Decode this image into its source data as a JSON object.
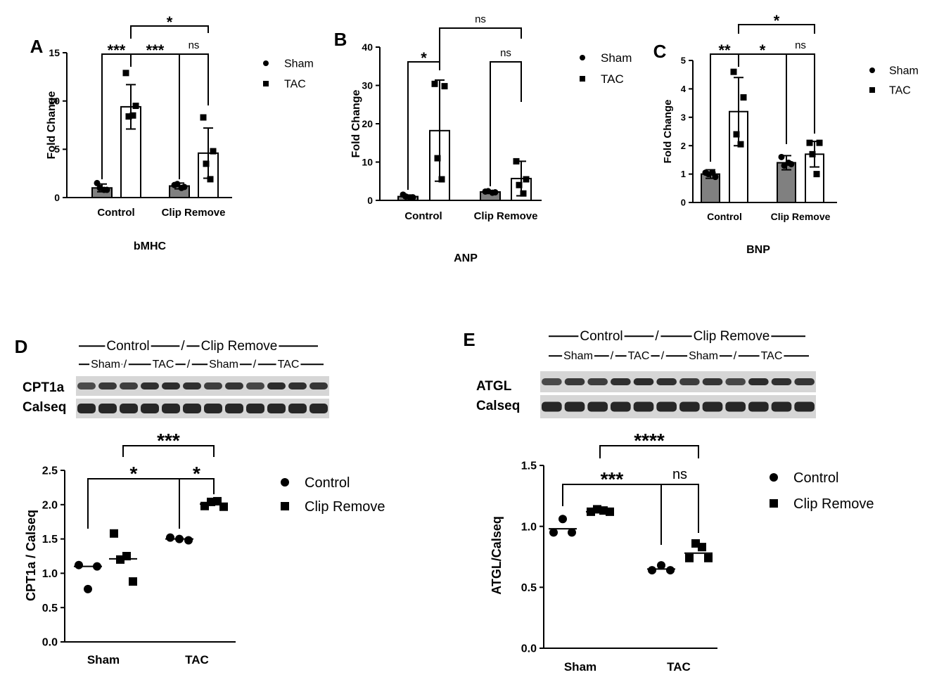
{
  "chart_data": [
    {
      "type": "bar",
      "panel": "A",
      "y_label": "Fold Change",
      "x_label": "bMHC",
      "categories": [
        "Control",
        "Clip Remove"
      ],
      "ylim": [
        0,
        15
      ],
      "yticks": [
        0,
        5,
        10,
        15
      ],
      "series": [
        {
          "name": "Sham",
          "color": "#808080",
          "marker": "circle",
          "values": [
            1.0,
            1.2
          ],
          "errors": [
            0.4,
            0.3
          ],
          "points": [
            [
              1.5,
              0.8,
              1.0,
              0.8
            ],
            [
              1.3,
              1.1,
              1.4,
              1.0
            ]
          ]
        },
        {
          "name": "TAC",
          "color": "#ffffff",
          "marker": "square",
          "values": [
            9.4,
            4.6
          ],
          "errors": [
            2.3,
            2.6
          ],
          "points": [
            [
              12.9,
              9.5,
              8.4,
              8.5
            ],
            [
              8.3,
              4.8,
              3.5,
              1.9
            ]
          ]
        }
      ],
      "comparisons": [
        "***",
        "***",
        "ns",
        "*"
      ]
    },
    {
      "type": "bar",
      "panel": "B",
      "y_label": "Fold Change",
      "x_label": "ANP",
      "categories": [
        "Control",
        "Clip Remove"
      ],
      "ylim": [
        0,
        40
      ],
      "yticks": [
        0,
        10,
        20,
        30,
        40
      ],
      "series": [
        {
          "name": "Sham",
          "color": "#808080",
          "marker": "circle",
          "values": [
            1.0,
            2.2
          ],
          "errors": [
            0.4,
            0.3
          ],
          "points": [
            [
              1.5,
              0.8,
              1.0,
              0.7
            ],
            [
              2.3,
              2.1,
              2.4,
              2.0
            ]
          ]
        },
        {
          "name": "TAC",
          "color": "#ffffff",
          "marker": "square",
          "values": [
            18.2,
            5.7
          ],
          "errors": [
            13.2,
            4.5
          ],
          "points": [
            [
              30.4,
              29.8,
              11.0,
              5.5
            ],
            [
              10.2,
              5.5,
              4.0,
              1.8
            ]
          ]
        }
      ],
      "comparisons": [
        "*",
        "ns",
        "ns"
      ]
    },
    {
      "type": "bar",
      "panel": "C",
      "y_label": "Fold Change",
      "x_label": "BNP",
      "categories": [
        "Control",
        "Clip Remove"
      ],
      "ylim": [
        0,
        5
      ],
      "yticks": [
        0,
        1,
        2,
        3,
        4,
        5
      ],
      "series": [
        {
          "name": "Sham",
          "color": "#808080",
          "marker": "circle",
          "values": [
            1.0,
            1.4
          ],
          "errors": [
            0.15,
            0.25
          ],
          "points": [
            [
              1.05,
              0.9,
              1.0,
              1.05
            ],
            [
              1.6,
              1.35,
              1.3,
              1.4
            ]
          ]
        },
        {
          "name": "TAC",
          "color": "#ffffff",
          "marker": "square",
          "values": [
            3.2,
            1.7
          ],
          "errors": [
            1.2,
            0.45
          ],
          "points": [
            [
              4.6,
              3.7,
              2.4,
              2.05
            ],
            [
              2.1,
              2.1,
              1.7,
              1.0
            ]
          ]
        }
      ],
      "comparisons": [
        "**",
        "*",
        "ns",
        "*"
      ]
    },
    {
      "type": "dot",
      "panel": "D",
      "y_label": "CPT1a / Calseq",
      "blot": {
        "header": [
          "Control",
          "/",
          "Clip Remove"
        ],
        "subheader": [
          "Sham",
          "/",
          "TAC",
          "/",
          "Sham",
          "/",
          "TAC"
        ],
        "rows": [
          "CPT1a",
          "Calseq"
        ]
      },
      "categories": [
        "Sham",
        "TAC"
      ],
      "ylim": [
        0,
        2.5
      ],
      "yticks": [
        {
          "value": 0,
          "label": "0.0"
        },
        0.5,
        {
          "value": 1,
          "label": "1.0"
        },
        1.5,
        {
          "value": 2,
          "label": "2.0"
        },
        2.5
      ],
      "series": [
        {
          "name": "Control",
          "color": "#000000",
          "marker": "circle",
          "values": [
            1.1,
            1.5
          ],
          "points": [
            [
              1.12,
              0.77,
              1.1
            ],
            [
              1.52,
              1.5,
              1.48
            ]
          ]
        },
        {
          "name": "Clip Remove",
          "color": "#000000",
          "marker": "square",
          "values": [
            1.21,
            2.01
          ],
          "points": [
            [
              1.58,
              1.2,
              1.25,
              0.88
            ],
            [
              1.98,
              2.04,
              2.05,
              1.97
            ]
          ]
        }
      ],
      "comparisons": [
        "*",
        "*",
        "***"
      ]
    },
    {
      "type": "dot",
      "panel": "E",
      "y_label": "ATGL/Calseq",
      "blot": {
        "header": [
          "Control",
          "/",
          "Clip Remove"
        ],
        "subheader": [
          "Sham",
          "/",
          "TAC",
          "/",
          "Sham",
          "/",
          "TAC"
        ],
        "rows": [
          "ATGL",
          "Calseq"
        ]
      },
      "categories": [
        "Sham",
        "TAC"
      ],
      "ylim": [
        0,
        1.5
      ],
      "yticks": [
        {
          "value": 0,
          "label": "0.0"
        },
        0.5,
        {
          "value": 1,
          "label": "1.0"
        },
        1.5
      ],
      "series": [
        {
          "name": "Control",
          "color": "#000000",
          "marker": "circle",
          "values": [
            0.98,
            0.65
          ],
          "points": [
            [
              0.95,
              1.06,
              0.95
            ],
            [
              0.64,
              0.68,
              0.64
            ]
          ]
        },
        {
          "name": "Clip Remove",
          "color": "#000000",
          "marker": "square",
          "values": [
            1.12,
            0.78
          ],
          "points": [
            [
              1.12,
              1.14,
              1.13,
              1.12
            ],
            [
              0.74,
              0.86,
              0.83,
              0.74
            ]
          ]
        }
      ],
      "comparisons": [
        "***",
        "ns",
        "****"
      ]
    }
  ]
}
